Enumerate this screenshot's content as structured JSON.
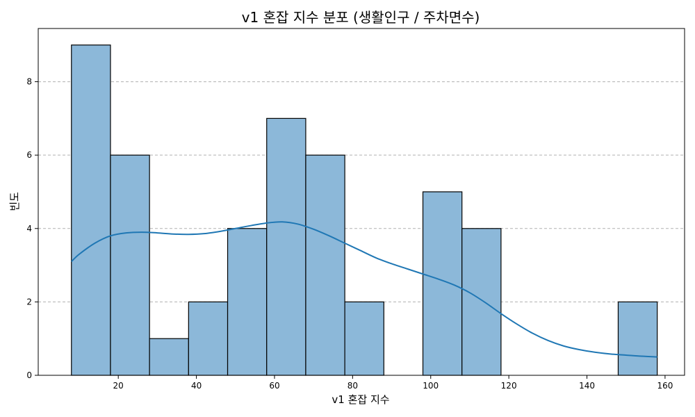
{
  "chart_data": {
    "type": "bar",
    "title": "v1 혼잡 지수 분포 (생활인구 / 주차면수)",
    "xlabel": "v1 혼잡 지수",
    "ylabel": "빈도",
    "xlim": [
      -0.5,
      165
    ],
    "ylim": [
      0,
      9.45
    ],
    "xticks": [
      20,
      40,
      60,
      80,
      100,
      120,
      140,
      160
    ],
    "yticks": [
      0,
      2,
      4,
      6,
      8
    ],
    "grid": "horizontal-dashed",
    "bins": [
      {
        "x0": 8,
        "x1": 18,
        "count": 9
      },
      {
        "x0": 18,
        "x1": 28,
        "count": 6
      },
      {
        "x0": 28,
        "x1": 38,
        "count": 1
      },
      {
        "x0": 38,
        "x1": 48,
        "count": 2
      },
      {
        "x0": 48,
        "x1": 58,
        "count": 4
      },
      {
        "x0": 58,
        "x1": 68,
        "count": 7
      },
      {
        "x0": 68,
        "x1": 78,
        "count": 6
      },
      {
        "x0": 78,
        "x1": 88,
        "count": 2
      },
      {
        "x0": 88,
        "x1": 98,
        "count": 0
      },
      {
        "x0": 98,
        "x1": 108,
        "count": 5
      },
      {
        "x0": 108,
        "x1": 118,
        "count": 4
      },
      {
        "x0": 118,
        "x1": 128,
        "count": 0
      },
      {
        "x0": 128,
        "x1": 138,
        "count": 0
      },
      {
        "x0": 138,
        "x1": 148,
        "count": 0
      },
      {
        "x0": 148,
        "x1": 158,
        "count": 2
      }
    ],
    "kde": {
      "x": [
        8,
        10,
        14,
        18,
        22,
        26,
        30,
        34,
        38,
        42,
        46,
        50,
        54,
        58,
        62,
        66,
        70,
        74,
        78,
        82,
        86,
        90,
        94,
        98,
        102,
        106,
        110,
        114,
        118,
        122,
        126,
        130,
        134,
        138,
        142,
        146,
        150,
        154,
        158
      ],
      "y": [
        3.1,
        3.3,
        3.6,
        3.8,
        3.88,
        3.9,
        3.88,
        3.85,
        3.84,
        3.86,
        3.92,
        4.0,
        4.08,
        4.15,
        4.18,
        4.12,
        3.98,
        3.8,
        3.6,
        3.4,
        3.2,
        3.04,
        2.9,
        2.76,
        2.62,
        2.46,
        2.25,
        1.98,
        1.68,
        1.4,
        1.15,
        0.95,
        0.8,
        0.7,
        0.63,
        0.58,
        0.55,
        0.52,
        0.5
      ]
    },
    "colors": {
      "bar_fill": "#8cb8d9",
      "bar_edge": "#000000",
      "kde_line": "#1f77b4"
    }
  }
}
